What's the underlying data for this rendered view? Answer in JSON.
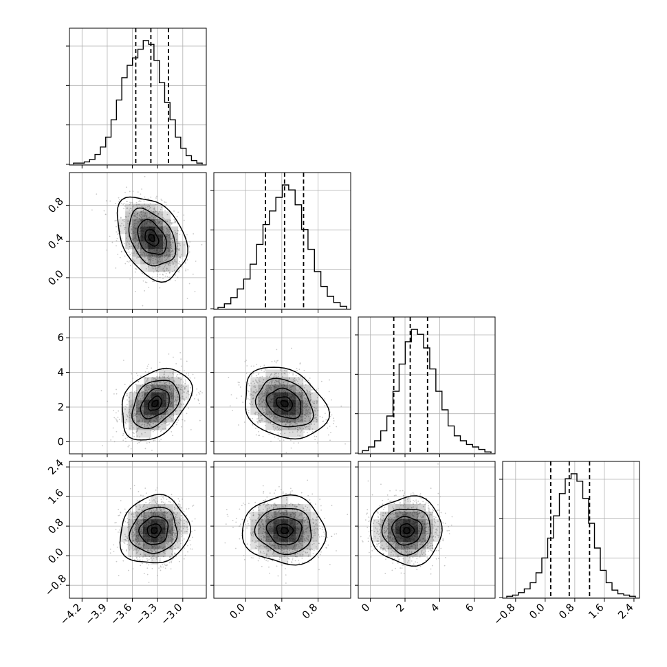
{
  "chart_data": {
    "type": "corner",
    "title": "",
    "grid": true,
    "colors": {
      "line": "#000000",
      "grid": "#b0b0b0",
      "density": "#000000",
      "points": "#000000"
    },
    "dims": [
      {
        "range": [
          -4.35,
          -2.72
        ],
        "ticks": [
          -4.2,
          -3.9,
          -3.6,
          -3.3,
          -3.0
        ],
        "tick_labels": [
          "−4.2",
          "−3.9",
          "−3.6",
          "−3.3",
          "−3.0"
        ],
        "histogram": {
          "counts": [
            1,
            1,
            2,
            4,
            8,
            14,
            22,
            36,
            52,
            70,
            80,
            86,
            93,
            100,
            97,
            84,
            66,
            50,
            36,
            22,
            13,
            7,
            3,
            1
          ],
          "quantiles": [
            -3.56,
            -3.38,
            -3.17
          ]
        }
      },
      {
        "range": [
          -0.35,
          1.16
        ],
        "ticks": [
          0.0,
          0.4,
          0.8
        ],
        "tick_labels": [
          "0.0",
          "0.4",
          "0.8"
        ],
        "histogram": {
          "counts": [
            1,
            4,
            9,
            16,
            24,
            36,
            52,
            68,
            79,
            90,
            100,
            96,
            84,
            64,
            48,
            30,
            18,
            10,
            5,
            2
          ],
          "quantiles": [
            0.22,
            0.43,
            0.64
          ]
        }
      },
      {
        "range": [
          -0.7,
          7.2
        ],
        "ticks": [
          0,
          2,
          4,
          6
        ],
        "tick_labels": [
          "0",
          "2",
          "4",
          "6"
        ],
        "histogram": {
          "counts": [
            2,
            5,
            10,
            18,
            30,
            50,
            72,
            90,
            100,
            96,
            85,
            68,
            50,
            35,
            22,
            14,
            10,
            7,
            5,
            3,
            1
          ],
          "quantiles": [
            1.35,
            2.3,
            3.3
          ]
        }
      },
      {
        "range": [
          -1.15,
          2.55
        ],
        "ticks": [
          -0.8,
          0.0,
          0.8,
          1.6,
          2.4
        ],
        "tick_labels": [
          "−0.8",
          "0.0",
          "0.8",
          "1.6",
          "2.4"
        ],
        "histogram": {
          "counts": [
            1,
            2,
            4,
            7,
            12,
            20,
            32,
            48,
            66,
            84,
            96,
            100,
            94,
            80,
            60,
            40,
            22,
            12,
            6,
            3,
            2,
            1
          ],
          "quantiles": [
            0.15,
            0.65,
            1.2
          ]
        }
      }
    ],
    "panels": [
      {
        "x": 0,
        "y": 1,
        "center": [
          -3.37,
          0.44
        ],
        "sd": [
          0.18,
          0.2
        ],
        "rho": -0.35
      },
      {
        "x": 0,
        "y": 2,
        "center": [
          -3.33,
          2.2
        ],
        "sd": [
          0.18,
          0.9
        ],
        "rho": 0.35
      },
      {
        "x": 1,
        "y": 2,
        "center": [
          0.43,
          2.2
        ],
        "sd": [
          0.2,
          0.9
        ],
        "rho": -0.25
      },
      {
        "x": 0,
        "y": 3,
        "center": [
          -3.34,
          0.68
        ],
        "sd": [
          0.18,
          0.4
        ],
        "rho": 0.1
      },
      {
        "x": 1,
        "y": 3,
        "center": [
          0.43,
          0.68
        ],
        "sd": [
          0.2,
          0.4
        ],
        "rho": -0.05
      },
      {
        "x": 2,
        "y": 3,
        "center": [
          2.1,
          0.68
        ],
        "sd": [
          0.9,
          0.4
        ],
        "rho": 0.0
      }
    ]
  }
}
